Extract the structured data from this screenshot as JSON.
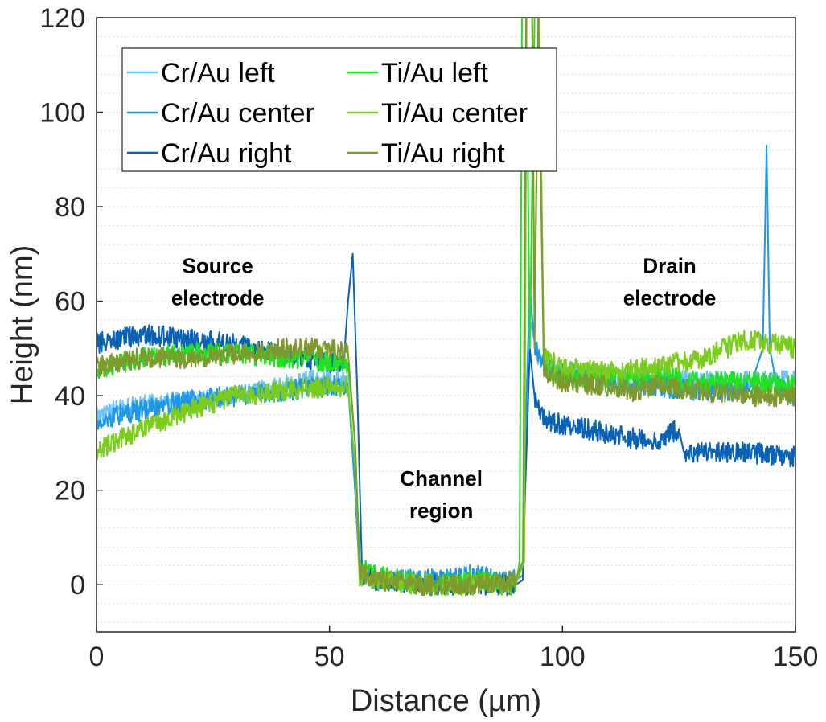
{
  "chart_data": {
    "type": "line",
    "title": "",
    "xlabel": "Distance (µm)",
    "ylabel": "Height (nm)",
    "xlim": [
      0,
      150
    ],
    "ylim": [
      -10,
      120
    ],
    "xticks": [
      0,
      50,
      100,
      150
    ],
    "yticks": [
      0,
      20,
      40,
      60,
      80,
      100,
      120
    ],
    "grid": "minor-y-dotted",
    "legend_placement": "top-left",
    "annotations": [
      {
        "lines": [
          "Source",
          "electrode"
        ],
        "x": 26,
        "y": 66
      },
      {
        "lines": [
          "Channel",
          "region"
        ],
        "x": 74,
        "y": 21
      },
      {
        "lines": [
          "Drain",
          "electrode"
        ],
        "x": 123,
        "y": 66
      }
    ],
    "series": [
      {
        "name": "Cr/Au left",
        "color": "#6cc3f5",
        "x": [
          0,
          5,
          10,
          20,
          30,
          40,
          50,
          54,
          55.5,
          56.5,
          60,
          70,
          80,
          90,
          91.5,
          92,
          92.8,
          94,
          96,
          100,
          110,
          120,
          130,
          140,
          150
        ],
        "y": [
          36,
          37,
          38,
          39,
          40,
          42,
          44,
          43,
          20,
          2,
          1,
          1,
          1,
          1,
          2,
          30,
          58,
          50,
          46,
          45,
          44,
          44,
          43,
          43,
          43
        ]
      },
      {
        "name": "Cr/Au center",
        "color": "#1f96e6",
        "x": [
          0,
          5,
          10,
          20,
          30,
          40,
          50,
          54,
          55.5,
          56.5,
          60,
          70,
          80,
          90,
          91.5,
          92,
          93,
          94,
          96,
          100,
          110,
          120,
          130,
          140,
          143,
          143.8,
          144.5,
          146,
          150
        ],
        "y": [
          34,
          36,
          37,
          39,
          40,
          41,
          42,
          42,
          20,
          2,
          1,
          1,
          2,
          1,
          2,
          30,
          63,
          50,
          47,
          45,
          43,
          42,
          41,
          41,
          50,
          93,
          50,
          42,
          40
        ]
      },
      {
        "name": "Cr/Au right",
        "color": "#0a62b5",
        "x": [
          0,
          5,
          10,
          20,
          30,
          40,
          50,
          53,
          54,
          55,
          56,
          57,
          60,
          70,
          80,
          90,
          91.5,
          92,
          93,
          94,
          96,
          100,
          110,
          120,
          125,
          126,
          130,
          140,
          150
        ],
        "y": [
          51,
          52,
          53,
          52,
          51,
          49,
          47,
          46,
          60,
          70,
          40,
          2,
          1,
          0,
          0,
          0,
          1,
          20,
          50,
          40,
          35,
          34,
          32,
          30,
          33,
          28,
          28,
          28,
          27
        ]
      },
      {
        "name": "Ti/Au left",
        "color": "#22e022",
        "x": [
          0,
          5,
          10,
          20,
          30,
          40,
          50,
          54,
          55.5,
          56.5,
          60,
          70,
          80,
          90,
          90.8,
          91.3,
          92.2,
          93,
          94,
          95,
          96,
          100,
          110,
          120,
          130,
          140,
          150
        ],
        "y": [
          45,
          47,
          48,
          49,
          49,
          48,
          47,
          47,
          30,
          4,
          2,
          0,
          1,
          0,
          5,
          120,
          120,
          50,
          120,
          120,
          46,
          44,
          44,
          44,
          43,
          43,
          42
        ]
      },
      {
        "name": "Ti/Au center",
        "color": "#7ccc1e",
        "x": [
          0,
          3,
          10,
          20,
          30,
          40,
          50,
          54,
          55.5,
          56.5,
          60,
          70,
          80,
          90,
          91.8,
          92.3,
          93.5,
          94,
          95,
          96,
          100,
          110,
          120,
          130,
          140,
          150
        ],
        "y": [
          28,
          30,
          33,
          37,
          40,
          41,
          42,
          42,
          25,
          2,
          1,
          0,
          0,
          0,
          5,
          120,
          120,
          60,
          120,
          48,
          46,
          45,
          46,
          48,
          52,
          50
        ]
      },
      {
        "name": "Ti/Au right",
        "color": "#7e9a2e",
        "x": [
          0,
          5,
          10,
          20,
          30,
          40,
          50,
          54,
          55.5,
          56.5,
          60,
          70,
          80,
          90,
          91.5,
          92.2,
          93.5,
          94,
          94.8,
          96,
          100,
          110,
          115,
          120,
          130,
          140,
          150
        ],
        "y": [
          46,
          47,
          48,
          48,
          49,
          50,
          50,
          49,
          30,
          3,
          1,
          0,
          0,
          1,
          5,
          120,
          120,
          50,
          120,
          45,
          43,
          42,
          41,
          42,
          41,
          40,
          40
        ]
      }
    ]
  }
}
